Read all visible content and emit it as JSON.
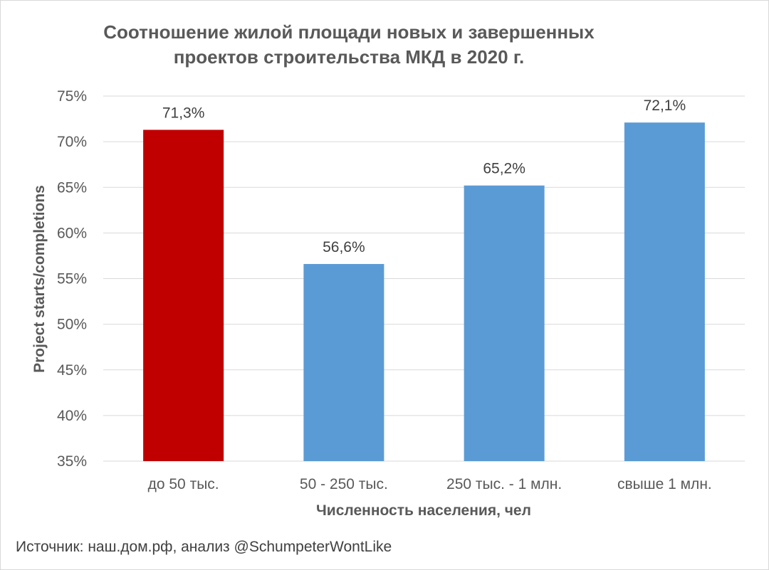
{
  "chart_data": {
    "type": "bar",
    "title_lines": [
      "Соотношение жилой площади новых и завершенных",
      "проектов строительства МКД в 2020 г."
    ],
    "xlabel": "Численность населения, чел",
    "ylabel": "Project starts/completions",
    "categories": [
      "до 50 тыс.",
      "50 - 250 тыс.",
      "250 тыс. - 1 млн.",
      "свыше 1 млн."
    ],
    "values": [
      71.3,
      56.6,
      65.2,
      72.1
    ],
    "data_labels": [
      "71,3%",
      "56,6%",
      "65,2%",
      "72,1%"
    ],
    "bar_colors": [
      "#c00000",
      "#5b9bd5",
      "#5b9bd5",
      "#5b9bd5"
    ],
    "ylim": [
      35,
      75
    ],
    "yticks": [
      75,
      70,
      65,
      60,
      55,
      50,
      45,
      40,
      35
    ],
    "ytick_labels": [
      "75%",
      "70%",
      "65%",
      "60%",
      "55%",
      "50%",
      "45%",
      "40%",
      "35%"
    ],
    "grid": true,
    "legend": "none"
  },
  "source": "Источник: наш.дом.рф, анализ @SchumpeterWontLike"
}
